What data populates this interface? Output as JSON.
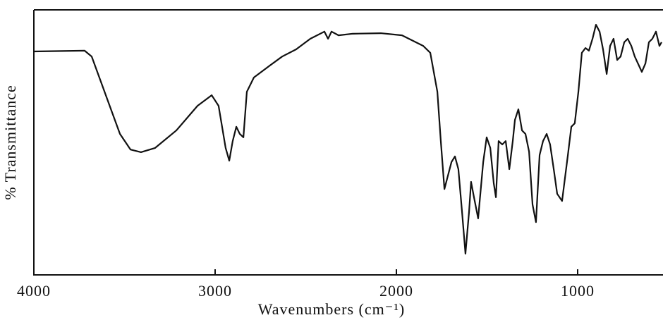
{
  "chart_data": {
    "type": "line",
    "xlabel": "Wavenumbers (cm⁻¹)",
    "ylabel": "% Transmittance",
    "xlim": [
      4000,
      537
    ],
    "xticks": [
      4000,
      3000,
      2000,
      1000
    ],
    "ylim": [
      0,
      100
    ],
    "color": "#111111",
    "x": [
      4000,
      3720,
      3681,
      3603,
      3525,
      3467,
      3409,
      3331,
      3214,
      3097,
      3019,
      2981,
      2942,
      2922,
      2903,
      2883,
      2864,
      2844,
      2825,
      2786,
      2708,
      2630,
      2553,
      2475,
      2397,
      2377,
      2358,
      2319,
      2241,
      2086,
      1969,
      1852,
      1813,
      1774,
      1755,
      1735,
      1696,
      1677,
      1658,
      1638,
      1619,
      1599,
      1588,
      1572,
      1549,
      1521,
      1502,
      1482,
      1463,
      1451,
      1436,
      1416,
      1397,
      1377,
      1358,
      1346,
      1327,
      1307,
      1288,
      1268,
      1249,
      1230,
      1210,
      1191,
      1171,
      1152,
      1132,
      1113,
      1086,
      1054,
      1035,
      1016,
      996,
      977,
      957,
      938,
      918,
      899,
      879,
      860,
      840,
      821,
      802,
      782,
      763,
      743,
      724,
      704,
      685,
      646,
      626,
      607,
      588,
      568,
      549,
      537
    ],
    "y": [
      84.3,
      84.6,
      82.4,
      67.8,
      53.2,
      47.3,
      46.3,
      47.9,
      54.5,
      63.8,
      67.8,
      63.8,
      47.9,
      43.1,
      50.5,
      55.9,
      53.2,
      51.9,
      69.1,
      74.5,
      78.5,
      82.4,
      85.1,
      89.1,
      91.8,
      89.1,
      91.8,
      90.4,
      91.0,
      91.2,
      90.4,
      86.4,
      83.8,
      69.1,
      50.5,
      32.4,
      42.6,
      44.7,
      39.9,
      23.9,
      8.0,
      23.9,
      35.1,
      29.3,
      21.3,
      42.6,
      51.9,
      47.9,
      34.6,
      29.3,
      50.5,
      49.2,
      50.5,
      39.9,
      50.5,
      58.5,
      62.5,
      54.5,
      53.2,
      46.5,
      26.6,
      19.9,
      45.2,
      50.5,
      53.2,
      49.2,
      39.9,
      30.6,
      27.9,
      45.2,
      55.9,
      57.2,
      69.1,
      83.8,
      85.6,
      84.6,
      89.1,
      94.4,
      91.8,
      85.1,
      75.8,
      86.4,
      89.1,
      81.1,
      82.4,
      87.8,
      89.1,
      86.4,
      82.4,
      76.6,
      79.8,
      87.8,
      89.1,
      91.8,
      86.4,
      87.8
    ]
  }
}
